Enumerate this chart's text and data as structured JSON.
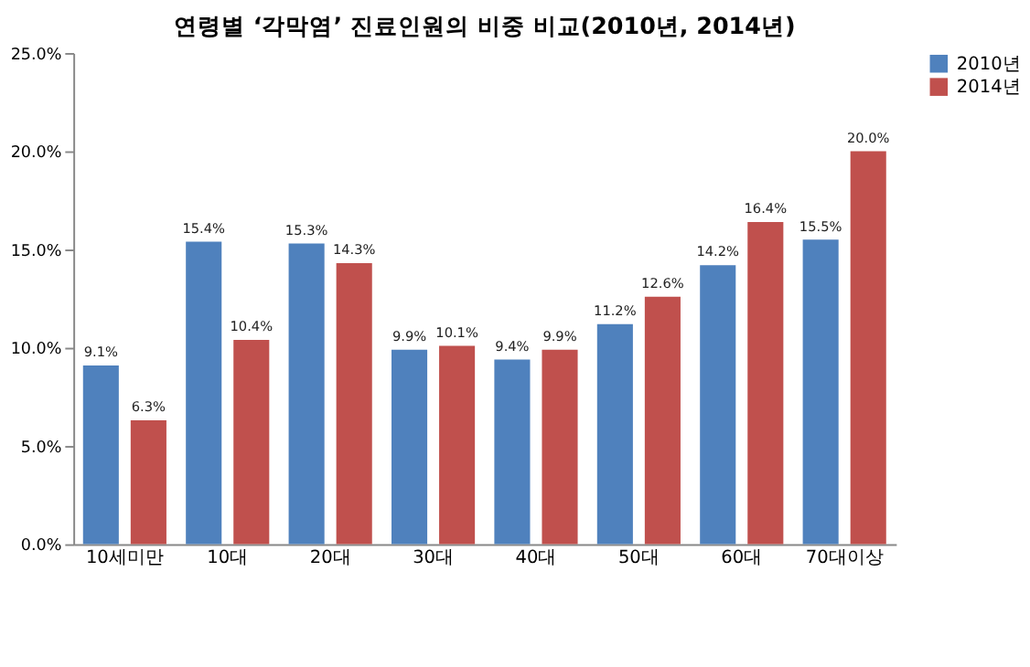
{
  "chart_data": {
    "type": "bar",
    "title": "연령별 ‘각막염’ 진료인원의 비중 비교(2010년, 2014년)",
    "categories": [
      "10세미만",
      "10대",
      "20대",
      "30대",
      "40대",
      "50대",
      "60대",
      "70대이상"
    ],
    "series": [
      {
        "name": "2010년",
        "color": "#4f81bd",
        "values": [
          9.1,
          15.4,
          15.3,
          9.9,
          9.4,
          11.2,
          14.2,
          15.5
        ],
        "value_labels": [
          "9.1%",
          "15.4%",
          "15.3%",
          "9.9%",
          "9.4%",
          "11.2%",
          "14.2%",
          "15.5%"
        ]
      },
      {
        "name": "2014년",
        "color": "#c0504d",
        "values": [
          6.3,
          10.4,
          14.3,
          10.1,
          9.9,
          12.6,
          16.4,
          20.0
        ],
        "value_labels": [
          "6.3%",
          "10.4%",
          "14.3%",
          "10.1%",
          "9.9%",
          "12.6%",
          "16.4%",
          "20.0%"
        ]
      }
    ],
    "ylim": [
      0,
      25
    ],
    "yticks": [
      {
        "value": 0,
        "label": "0.0%"
      },
      {
        "value": 5,
        "label": "5.0%"
      },
      {
        "value": 10,
        "label": "10.0%"
      },
      {
        "value": 15,
        "label": "15.0%"
      },
      {
        "value": 20,
        "label": "20.0%"
      },
      {
        "value": 25,
        "label": "25.0%"
      }
    ],
    "grid": false,
    "legend": "right"
  }
}
